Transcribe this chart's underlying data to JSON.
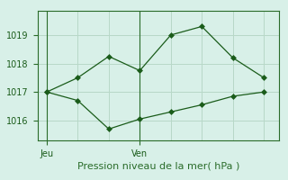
{
  "line1_x": [
    0,
    1,
    2,
    3,
    4,
    5,
    6,
    7
  ],
  "line1_y": [
    1017.0,
    1016.7,
    1015.7,
    1016.05,
    1016.3,
    1016.55,
    1016.85,
    1017.0
  ],
  "line2_x": [
    0,
    1,
    2,
    3,
    4,
    5,
    6,
    7
  ],
  "line2_y": [
    1017.0,
    1017.5,
    1018.25,
    1017.75,
    1019.0,
    1019.3,
    1018.2,
    1017.5
  ],
  "line_color": "#1a5c1a",
  "bg_color": "#d8f0e8",
  "grid_color": "#b8d8c8",
  "axis_color": "#2a6c2a",
  "xlabel": "Pression niveau de la mer( hPa )",
  "yticks": [
    1016,
    1017,
    1018,
    1019
  ],
  "ylim": [
    1015.3,
    1019.85
  ],
  "xlim": [
    -0.3,
    7.5
  ],
  "jeu_x": 0,
  "ven_x": 3,
  "grid_x_positions": [
    0,
    1,
    2,
    3,
    4,
    5,
    6,
    7
  ],
  "tick_fontsize": 7,
  "xlabel_fontsize": 8,
  "marker_size": 3
}
